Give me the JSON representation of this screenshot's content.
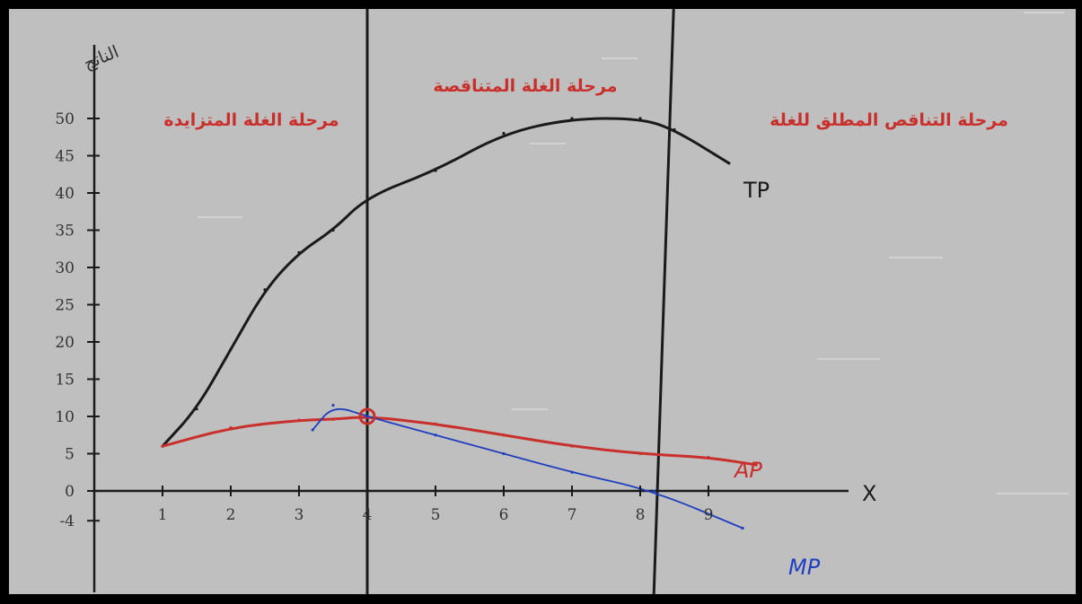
{
  "colors": {
    "background": "#bfbfbf",
    "frame": "#000000",
    "ink": "#1a1a1a",
    "ap": "#c9302c",
    "mp": "#1f3fbf",
    "annotation": "#c9302c"
  },
  "chart_data": {
    "type": "line",
    "ylabel": "الناتج",
    "xlabel": "X",
    "xlim": [
      0,
      10.5
    ],
    "ylim": [
      -5,
      58
    ],
    "x_ticks": [
      1,
      2,
      3,
      4,
      5,
      6,
      7,
      8,
      9
    ],
    "x_tick_labels": [
      "1",
      "2",
      "3",
      "4",
      "5",
      "6",
      "7",
      "8",
      "9"
    ],
    "y_ticks": [
      -4,
      0,
      5,
      10,
      15,
      20,
      25,
      30,
      35,
      40,
      45,
      50
    ],
    "y_tick_labels": [
      "-4",
      "0",
      "5",
      "10",
      "15",
      "20",
      "25",
      "30",
      "35",
      "40",
      "45",
      "50"
    ],
    "grid": false,
    "regions": [
      {
        "label": "مرحلة الغلة المتزايدة"
      },
      {
        "label": "مرحلة الغلة المتناقصة"
      },
      {
        "label": "مرحلة التناقص المطلق للغلة"
      }
    ],
    "stage_boundaries_x": [
      4,
      8.2
    ],
    "series": [
      {
        "name": "TP",
        "x": [
          1,
          1.5,
          2,
          2.5,
          3,
          3.5,
          4,
          5,
          6,
          7,
          8,
          8.5,
          9.3
        ],
        "y": [
          6,
          11,
          19,
          27,
          32,
          35,
          39.5,
          43,
          48,
          50,
          50,
          48.5,
          44
        ]
      },
      {
        "name": "AP",
        "x": [
          1,
          2,
          3,
          3.5,
          4,
          5,
          6,
          7,
          8,
          9,
          9.7
        ],
        "y": [
          6,
          8.5,
          9.5,
          9.6,
          10,
          9,
          7.5,
          6,
          5,
          4.5,
          3.5
        ]
      },
      {
        "name": "MP",
        "x": [
          3.2,
          3.5,
          4,
          5,
          6,
          7,
          8.2,
          9.5
        ],
        "y": [
          8.2,
          11.5,
          10,
          7.5,
          5,
          2.5,
          0,
          -5
        ]
      }
    ],
    "markers": [
      {
        "series": "AP",
        "x": 4,
        "y": 10,
        "shape": "circle"
      }
    ]
  }
}
